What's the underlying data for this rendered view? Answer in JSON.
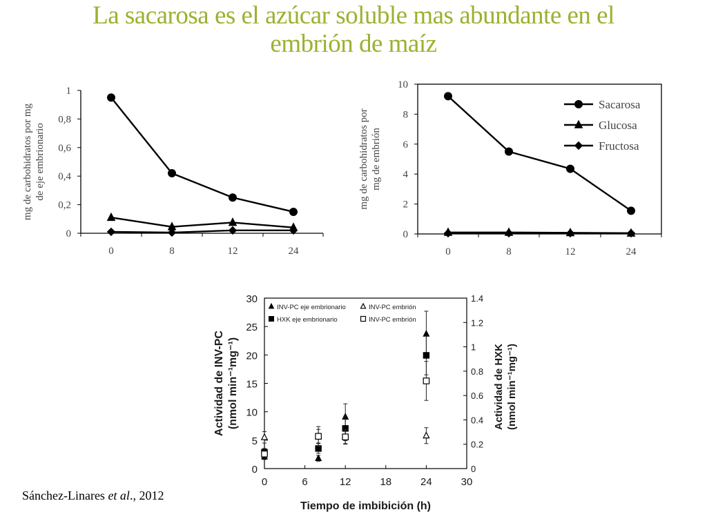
{
  "title": {
    "line1": "La sacarosa es el azúcar soluble mas abundante en el",
    "line2": "embrión de maíz"
  },
  "citation": {
    "authors": "Sánchez-Linares ",
    "etal": "et al",
    "year": "., 2012"
  },
  "colors": {
    "title": "#9bb130",
    "series": "#000000"
  },
  "chart_data": [
    {
      "type": "line",
      "ylabel": [
        "mg de carbohidratos por mg",
        "de eje embrionario"
      ],
      "x": [
        0,
        8,
        12,
        24
      ],
      "categories": [
        "0",
        "8",
        "12",
        "24"
      ],
      "ylim": [
        0,
        1
      ],
      "yticks": [
        0,
        0.2,
        0.4,
        0.6,
        0.8,
        1
      ],
      "ytick_labels": [
        "0",
        "0,2",
        "0,4",
        "0,6",
        "0,8",
        "1"
      ],
      "series": [
        {
          "name": "Sacarosa",
          "marker": "circle",
          "values": [
            0.95,
            0.42,
            0.25,
            0.15
          ]
        },
        {
          "name": "Glucosa",
          "marker": "triangle",
          "values": [
            0.11,
            0.045,
            0.075,
            0.04
          ]
        },
        {
          "name": "Fructosa",
          "marker": "diamond",
          "values": [
            0.01,
            0.005,
            0.02,
            0.02
          ]
        }
      ]
    },
    {
      "type": "line",
      "ylabel": [
        "mg de carbohidratos por",
        "mg de embrión"
      ],
      "x": [
        0,
        8,
        12,
        24
      ],
      "categories": [
        "0",
        "8",
        "12",
        "24"
      ],
      "ylim": [
        0,
        10
      ],
      "yticks": [
        0,
        2,
        4,
        6,
        8,
        10
      ],
      "ytick_labels": [
        "0",
        "2",
        "4",
        "6",
        "8",
        "10"
      ],
      "legend": {
        "position": "top-right"
      },
      "series": [
        {
          "name": "Sacarosa",
          "marker": "circle",
          "values": [
            9.2,
            5.5,
            4.35,
            1.55
          ]
        },
        {
          "name": "Glucosa",
          "marker": "triangle",
          "values": [
            0.1,
            0.1,
            0.08,
            0.05
          ]
        },
        {
          "name": "Fructosa",
          "marker": "diamond",
          "values": [
            0.05,
            0.05,
            0.05,
            0.05
          ]
        }
      ]
    },
    {
      "type": "scatter",
      "xlabel": "Tiempo de imbibición (h)",
      "ylabel": [
        "Actividad de INV-PC",
        "(nmol min⁻¹mg⁻¹)"
      ],
      "y2label": [
        "Actividad de HXK",
        "(nmol min⁻¹mg⁻¹)"
      ],
      "xlim": [
        0,
        30
      ],
      "xticks": [
        0,
        6,
        12,
        18,
        24,
        30
      ],
      "ylim": [
        0,
        30
      ],
      "yticks": [
        0,
        5,
        10,
        15,
        20,
        25,
        30
      ],
      "y2lim": [
        0,
        1.4
      ],
      "y2ticks": [
        0,
        0.2,
        0.4,
        0.6,
        0.8,
        1,
        1.2,
        1.4
      ],
      "y2tick_labels": [
        "0",
        "0.2",
        "0.4",
        "0.6",
        "0.8",
        "1",
        "1.2",
        "1.4"
      ],
      "series": [
        {
          "name": "INV-PC eje embrionario",
          "marker": "triangle",
          "filled": true,
          "axis": "left",
          "x": [
            0,
            8,
            12,
            24
          ],
          "y": [
            2.1,
            1.8,
            9.1,
            23.7
          ],
          "err": [
            0.5,
            0.5,
            2.3,
            4.0
          ]
        },
        {
          "name": "HXK eje embrionario",
          "marker": "square",
          "filled": true,
          "axis": "right",
          "x": [
            0,
            8,
            12,
            24
          ],
          "y": [
            0.135,
            0.165,
            0.33,
            0.93
          ],
          "err": [
            0.03,
            0.04,
            0.1,
            0.16
          ]
        },
        {
          "name": "INV-PC embrión",
          "marker": "triangle",
          "filled": false,
          "axis": "left",
          "x": [
            0,
            8,
            12,
            24
          ],
          "y": [
            5.5,
            5.7,
            5.6,
            5.8
          ],
          "err": [
            1.0,
            1.2,
            1.2,
            1.4
          ]
        },
        {
          "name": "INV-PC embrión",
          "marker": "square",
          "filled": false,
          "axis": "right",
          "x": [
            0,
            8,
            12,
            24
          ],
          "y": [
            0.12,
            0.265,
            0.26,
            0.72
          ],
          "err": [
            0.03,
            0.08,
            0.06,
            0.16
          ]
        }
      ]
    }
  ]
}
